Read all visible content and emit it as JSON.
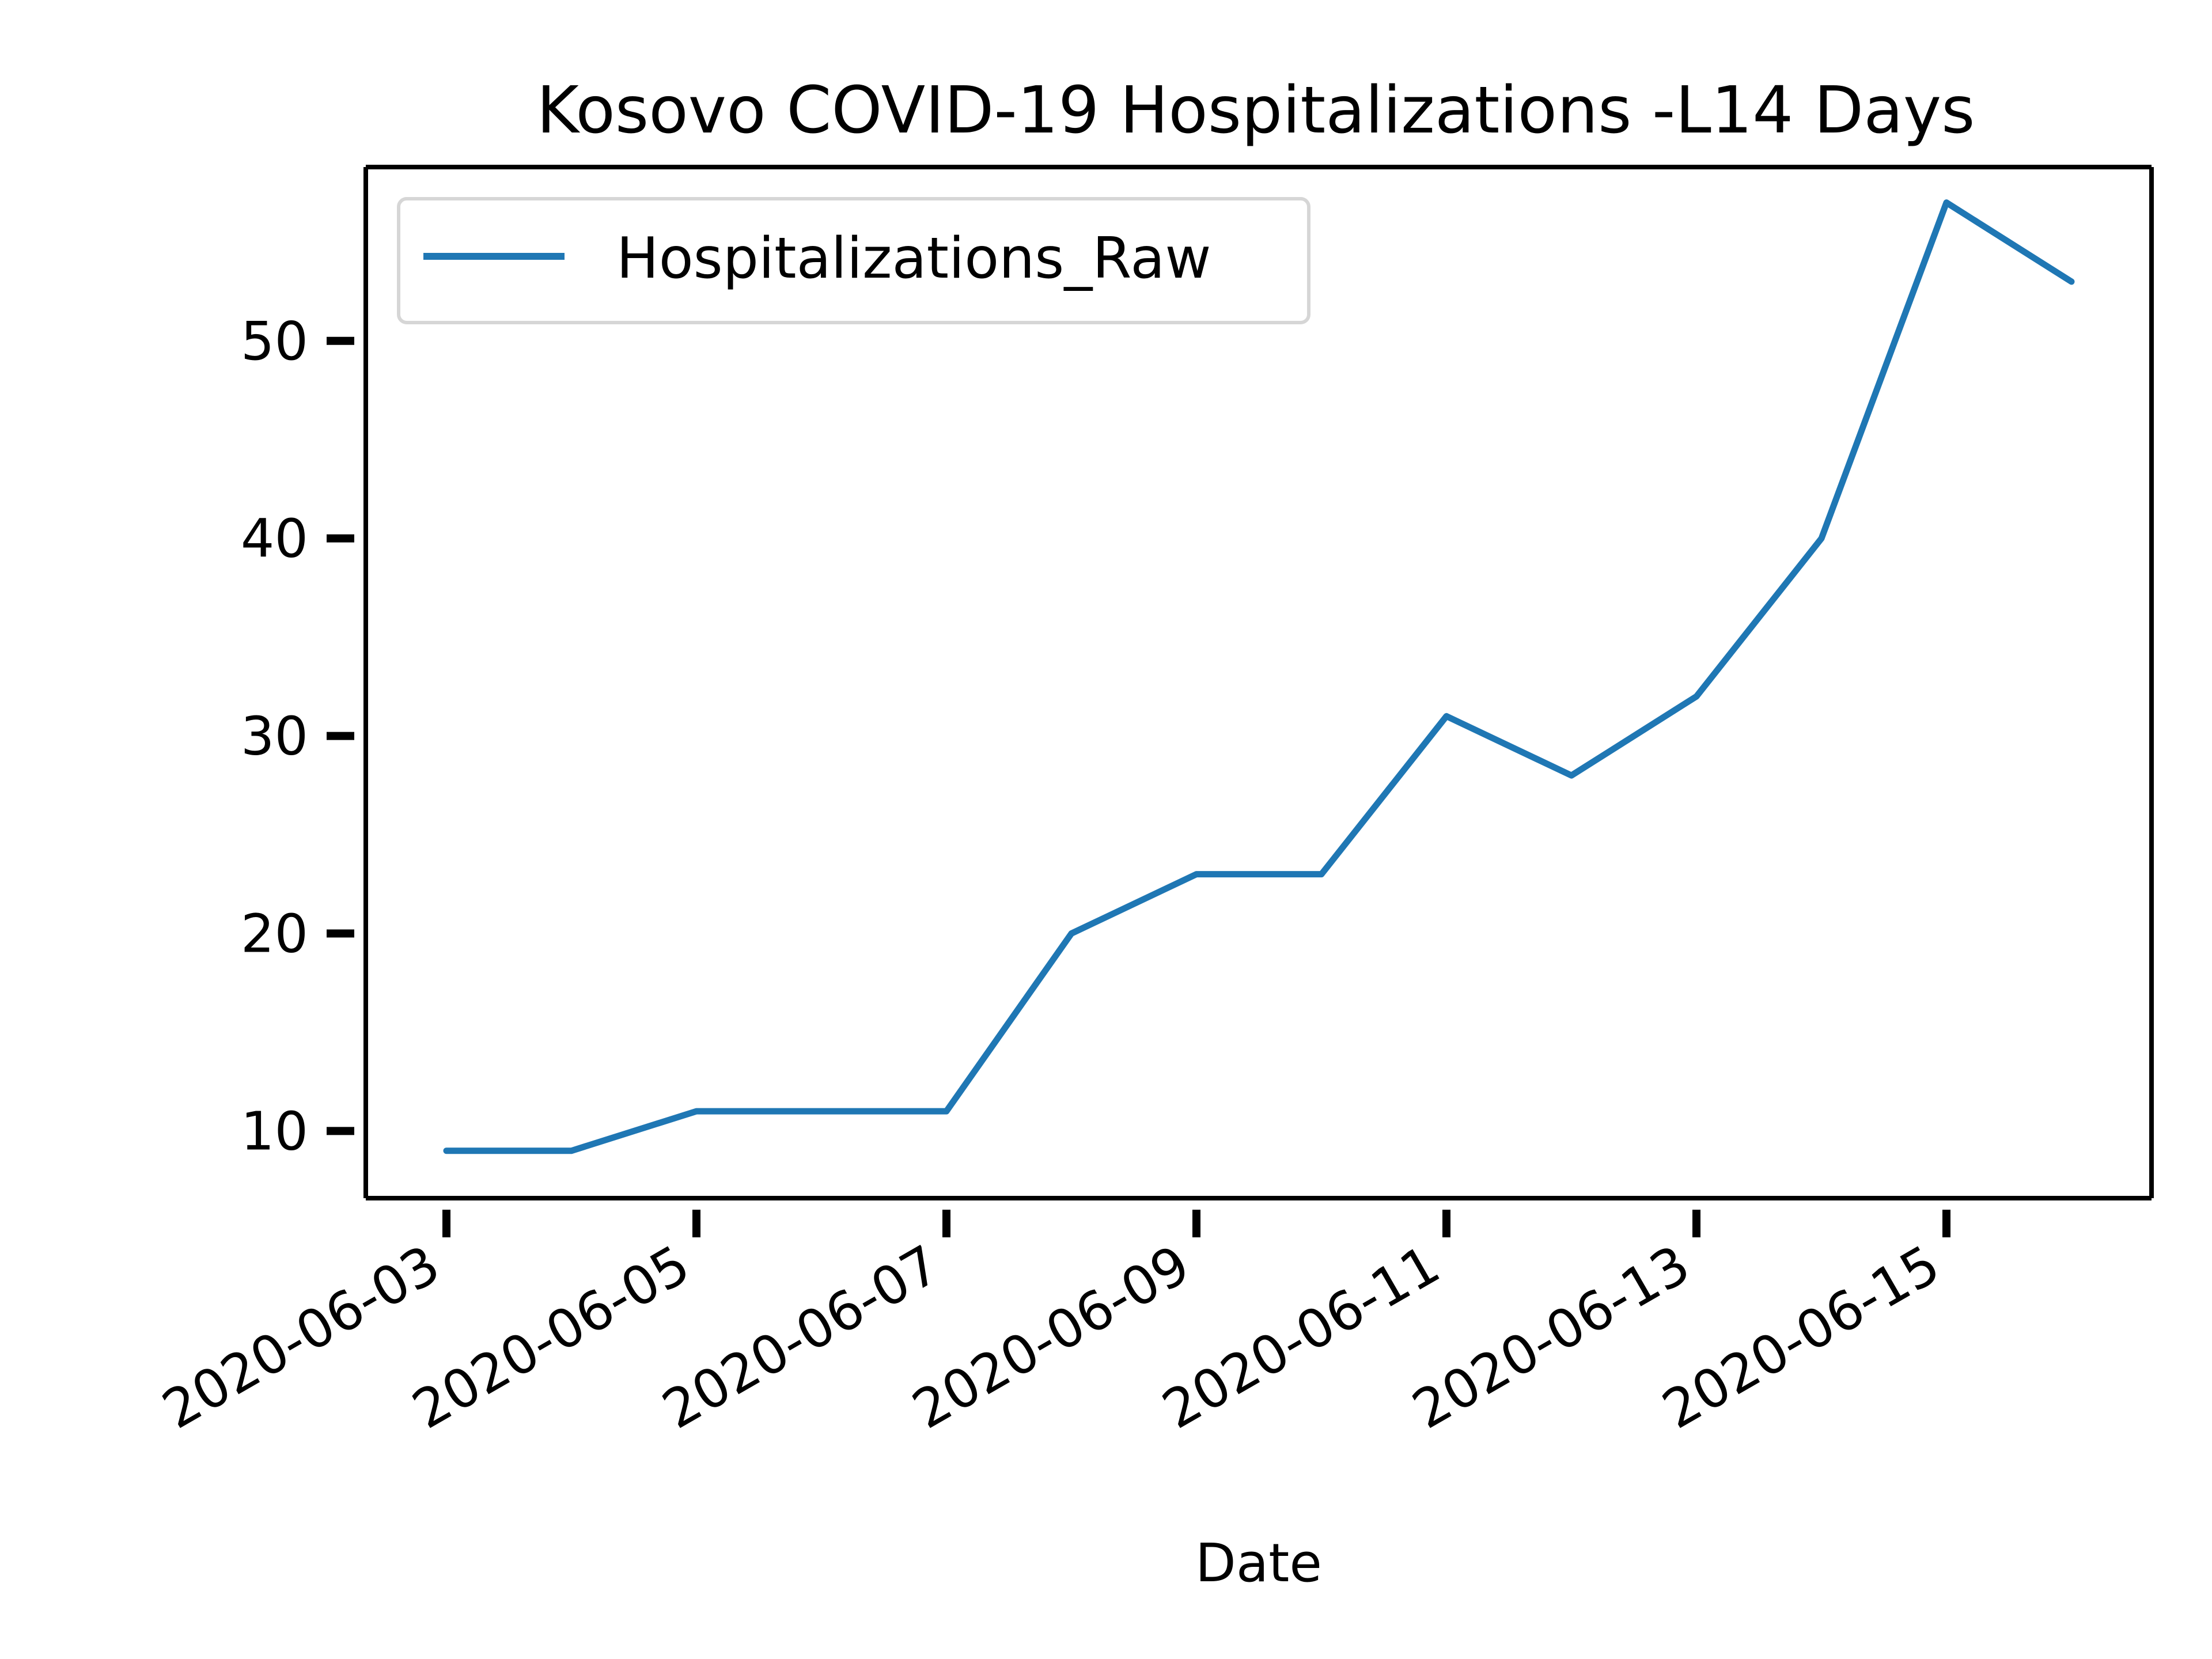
{
  "chart_data": {
    "type": "line",
    "title": "Kosovo COVID-19 Hospitalizations -L14 Days",
    "xlabel": "Date",
    "ylabel": "",
    "x": [
      "2020-06-03",
      "2020-06-04",
      "2020-06-05",
      "2020-06-06",
      "2020-06-07",
      "2020-06-08",
      "2020-06-09",
      "2020-06-10",
      "2020-06-11",
      "2020-06-12",
      "2020-06-13",
      "2020-06-14",
      "2020-06-15",
      "2020-06-16"
    ],
    "x_tick_labels": [
      "2020-06-03",
      "2020-06-05",
      "2020-06-07",
      "2020-06-09",
      "2020-06-11",
      "2020-06-13",
      "2020-06-15"
    ],
    "y_ticks": [
      "10",
      "20",
      "30",
      "40",
      "50"
    ],
    "ylim": [
      6.6,
      58.8
    ],
    "series": [
      {
        "name": "Hospitalizations_Raw",
        "color": "#1f77b4",
        "values": [
          9,
          9,
          11,
          11,
          11,
          20,
          23,
          23,
          31,
          28,
          32,
          40,
          57,
          53
        ]
      }
    ],
    "legend": {
      "position": "upper-left"
    },
    "grid": false
  }
}
